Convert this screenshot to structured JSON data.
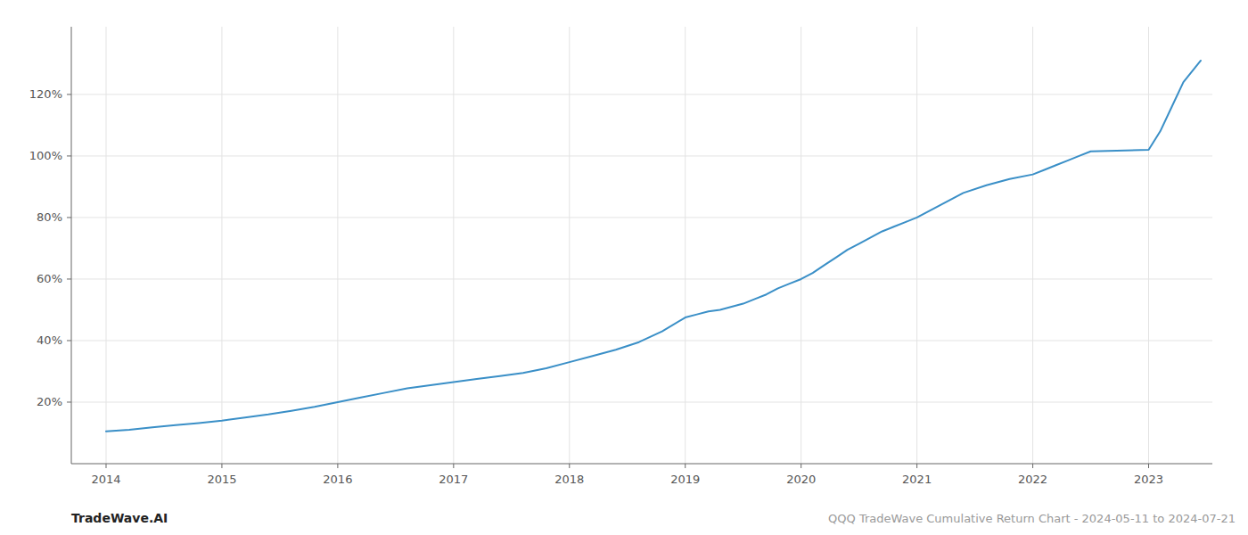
{
  "chart_data": {
    "type": "line",
    "title": "QQQ TradeWave Cumulative Return Chart - 2024-05-11 to 2024-07-21",
    "annotations": [
      "TradeWave.AI"
    ],
    "x": [
      2014.0,
      2014.2,
      2014.4,
      2014.6,
      2014.8,
      2015.0,
      2015.2,
      2015.4,
      2015.6,
      2015.8,
      2016.0,
      2016.2,
      2016.4,
      2016.6,
      2016.8,
      2017.0,
      2017.2,
      2017.4,
      2017.6,
      2017.8,
      2018.0,
      2018.2,
      2018.4,
      2018.6,
      2018.8,
      2019.0,
      2019.1,
      2019.2,
      2019.3,
      2019.4,
      2019.5,
      2019.6,
      2019.7,
      2019.8,
      2019.9,
      2020.0,
      2020.1,
      2020.2,
      2020.3,
      2020.4,
      2020.5,
      2020.6,
      2020.7,
      2020.8,
      2020.9,
      2021.0,
      2021.2,
      2021.4,
      2021.6,
      2021.8,
      2022.0,
      2022.1,
      2022.2,
      2022.3,
      2022.4,
      2022.5,
      2023.0,
      2023.1,
      2023.2,
      2023.3,
      2023.45
    ],
    "values": [
      10.5,
      11.0,
      11.8,
      12.5,
      13.2,
      14.0,
      15.0,
      16.0,
      17.2,
      18.5,
      20.0,
      21.5,
      23.0,
      24.5,
      25.5,
      26.5,
      27.5,
      28.5,
      29.5,
      31.0,
      33.0,
      35.0,
      37.0,
      39.5,
      43.0,
      47.5,
      48.5,
      49.5,
      50.0,
      51.0,
      52.0,
      53.5,
      55.0,
      57.0,
      58.5,
      60.0,
      62.0,
      64.5,
      67.0,
      69.5,
      71.5,
      73.5,
      75.5,
      77.0,
      78.5,
      80.0,
      84.0,
      88.0,
      90.5,
      92.5,
      94.0,
      95.5,
      97.0,
      98.5,
      100.0,
      101.5,
      102.0,
      108.0,
      116.0,
      124.0,
      131.0
    ],
    "color": "#3a8fc7",
    "xlim": [
      2013.7,
      2023.55
    ],
    "ylim": [
      0,
      142
    ],
    "xticks": [
      2014,
      2015,
      2016,
      2017,
      2018,
      2019,
      2020,
      2021,
      2022,
      2023
    ],
    "yticks": [
      {
        "value": 20,
        "label": "20%"
      },
      {
        "value": 40,
        "label": "40%"
      },
      {
        "value": 60,
        "label": "60%"
      },
      {
        "value": 80,
        "label": "80%"
      },
      {
        "value": 100,
        "label": "100%"
      },
      {
        "value": 120,
        "label": "120%"
      }
    ],
    "grid": true
  }
}
